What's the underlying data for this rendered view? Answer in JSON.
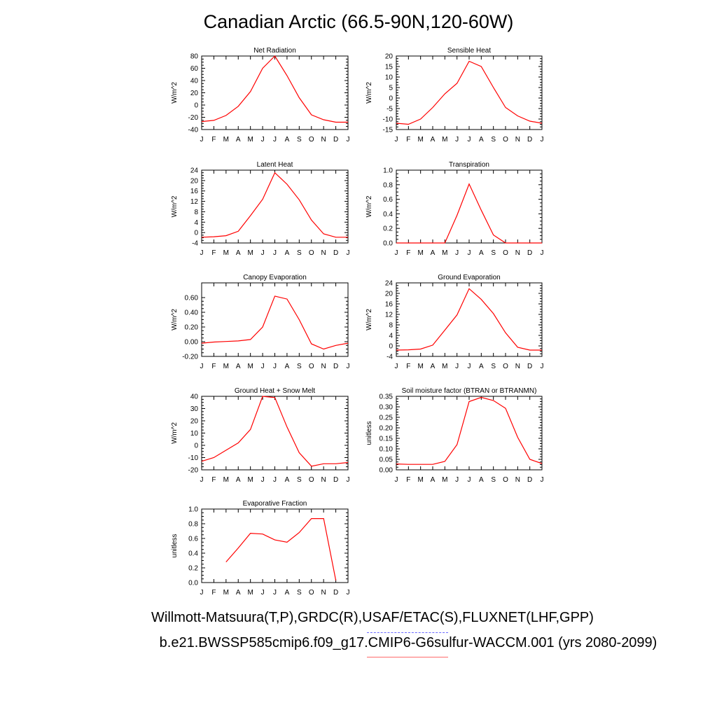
{
  "page": {
    "title": "Canadian Arctic (66.5-90N,120-60W)",
    "footer_obs": "Willmott-Matsuura(T,P),GRDC(R),USAF/ETAC(S),FLUXNET(LHF,GPP)",
    "footer_case": "b.e21.BWSSP585cmip6.f09_g17.CMIP6-G6sulfur-WACCM.001 (yrs 2080-2099)",
    "line_color": "#ff0000",
    "obs_dash_color": "#6a6aff",
    "case_line_color": "#ff6a6a"
  },
  "chart_data": [
    {
      "type": "line",
      "title": "Net Radiation",
      "ylabel": "W/m^2",
      "xticks": [
        "J",
        "F",
        "M",
        "A",
        "M",
        "J",
        "J",
        "A",
        "S",
        "O",
        "N",
        "D",
        "J"
      ],
      "ylim": [
        -40,
        80
      ],
      "yticks": [
        -40,
        -20,
        0,
        20,
        40,
        60,
        80
      ],
      "ytick_labels": [
        "-40",
        "-20",
        "0",
        "20",
        "40",
        "60",
        "80"
      ],
      "series": [
        {
          "values": [
            -27,
            -25,
            -17,
            -2,
            22,
            60,
            80,
            48,
            12,
            -16,
            -24,
            -28,
            -28
          ]
        }
      ]
    },
    {
      "type": "line",
      "title": "Sensible Heat",
      "ylabel": "W/m^2",
      "xticks": [
        "J",
        "F",
        "M",
        "A",
        "M",
        "J",
        "J",
        "A",
        "S",
        "O",
        "N",
        "D",
        "J"
      ],
      "ylim": [
        -15,
        20
      ],
      "yticks": [
        -15,
        -10,
        -5,
        0,
        5,
        10,
        15,
        20
      ],
      "ytick_labels": [
        "-15",
        "-10",
        "-5",
        "0",
        "5",
        "10",
        "15",
        "20"
      ],
      "series": [
        {
          "values": [
            -12,
            -12.5,
            -10,
            -4.5,
            2,
            7,
            17.5,
            15,
            5,
            -4.5,
            -8.5,
            -11,
            -12
          ]
        }
      ]
    },
    {
      "type": "line",
      "title": "Latent Heat",
      "ylabel": "W/m^2",
      "xticks": [
        "J",
        "F",
        "M",
        "A",
        "M",
        "J",
        "J",
        "A",
        "S",
        "O",
        "N",
        "D",
        "J"
      ],
      "ylim": [
        -4,
        24
      ],
      "yticks": [
        -4,
        0,
        4,
        8,
        12,
        16,
        20,
        24
      ],
      "ytick_labels": [
        "-4",
        "0",
        "4",
        "8",
        "12",
        "16",
        "20",
        "24"
      ],
      "series": [
        {
          "values": [
            -1.8,
            -1.6,
            -1.2,
            0.5,
            6.5,
            12.8,
            23,
            18.6,
            12.6,
            4.8,
            -0.5,
            -1.8,
            -1.8
          ]
        }
      ]
    },
    {
      "type": "line",
      "title": "Transpiration",
      "ylabel": "W/m^2",
      "xticks": [
        "J",
        "F",
        "M",
        "A",
        "M",
        "J",
        "J",
        "A",
        "S",
        "O",
        "N",
        "D",
        "J"
      ],
      "ylim": [
        0,
        1
      ],
      "yticks": [
        0,
        0.2,
        0.4,
        0.6,
        0.8,
        1.0
      ],
      "ytick_labels": [
        "0.0",
        "0.2",
        "0.4",
        "0.6",
        "0.8",
        "1.0"
      ],
      "series": [
        {
          "values": [
            0,
            0,
            0,
            0,
            0,
            0.38,
            0.81,
            0.45,
            0.11,
            0,
            0,
            0,
            0
          ]
        }
      ]
    },
    {
      "type": "line",
      "title": "Canopy Evaporation",
      "ylabel": "W/m^2",
      "xticks": [
        "J",
        "F",
        "M",
        "A",
        "M",
        "J",
        "J",
        "A",
        "S",
        "O",
        "N",
        "D",
        "J"
      ],
      "ylim": [
        -0.2,
        0.8
      ],
      "yticks": [
        -0.2,
        0,
        0.2,
        0.4,
        0.6
      ],
      "ytick_labels": [
        "-0.20",
        "0.00",
        "0.20",
        "0.40",
        "0.60"
      ],
      "series": [
        {
          "values": [
            -0.02,
            -0.005,
            0.003,
            0.01,
            0.03,
            0.2,
            0.62,
            0.58,
            0.3,
            -0.03,
            -0.1,
            -0.05,
            -0.02
          ]
        }
      ]
    },
    {
      "type": "line",
      "title": "Ground Evaporation",
      "ylabel": "W/m^2",
      "xticks": [
        "J",
        "F",
        "M",
        "A",
        "M",
        "J",
        "J",
        "A",
        "S",
        "O",
        "N",
        "D",
        "J"
      ],
      "ylim": [
        -4,
        24
      ],
      "yticks": [
        -4,
        0,
        4,
        8,
        12,
        16,
        20,
        24
      ],
      "ytick_labels": [
        "-4",
        "0",
        "4",
        "8",
        "12",
        "16",
        "20",
        "24"
      ],
      "series": [
        {
          "values": [
            -1.6,
            -1.5,
            -1.2,
            0.3,
            6,
            11.8,
            21.8,
            17.7,
            12.3,
            5,
            -0.5,
            -1.6,
            -1.6
          ]
        }
      ]
    },
    {
      "type": "line",
      "title": "Ground Heat + Snow Melt",
      "ylabel": "W/m^2",
      "xticks": [
        "J",
        "F",
        "M",
        "A",
        "M",
        "J",
        "J",
        "A",
        "S",
        "O",
        "N",
        "D",
        "J"
      ],
      "ylim": [
        -20,
        40
      ],
      "yticks": [
        -20,
        -10,
        0,
        10,
        20,
        30,
        40
      ],
      "ytick_labels": [
        "-20",
        "-10",
        "0",
        "10",
        "20",
        "30",
        "40"
      ],
      "series": [
        {
          "values": [
            -13,
            -10,
            -4,
            2,
            13,
            40,
            39,
            15,
            -6,
            -17,
            -15,
            -15,
            -14
          ]
        }
      ]
    },
    {
      "type": "line",
      "title": "Soil moisture factor (BTRAN or BTRANMN)",
      "ylabel": "unitless",
      "xticks": [
        "J",
        "F",
        "M",
        "A",
        "M",
        "J",
        "J",
        "A",
        "S",
        "O",
        "N",
        "D",
        "J"
      ],
      "ylim": [
        0,
        0.35
      ],
      "yticks": [
        0,
        0.05,
        0.1,
        0.15,
        0.2,
        0.25,
        0.3,
        0.35
      ],
      "ytick_labels": [
        "0.00",
        "0.05",
        "0.10",
        "0.15",
        "0.20",
        "0.25",
        "0.30",
        "0.35"
      ],
      "series": [
        {
          "values": [
            0.028,
            0.026,
            0.026,
            0.026,
            0.04,
            0.12,
            0.325,
            0.345,
            0.33,
            0.293,
            0.155,
            0.05,
            0.03
          ]
        }
      ]
    },
    {
      "type": "line",
      "title": "Evaporative Fraction",
      "ylabel": "unitless",
      "xticks": [
        "J",
        "F",
        "M",
        "A",
        "M",
        "J",
        "J",
        "A",
        "S",
        "O",
        "N",
        "D",
        "J"
      ],
      "ylim": [
        0,
        1
      ],
      "yticks": [
        0,
        0.2,
        0.4,
        0.6,
        0.8,
        1.0
      ],
      "ytick_labels": [
        "0.0",
        "0.2",
        "0.4",
        "0.6",
        "0.8",
        "1.0"
      ],
      "series": [
        {
          "values": [
            null,
            null,
            0.28,
            0.47,
            0.67,
            0.66,
            0.58,
            0.55,
            0.68,
            0.87,
            0.87,
            0.03,
            null
          ]
        }
      ]
    }
  ]
}
